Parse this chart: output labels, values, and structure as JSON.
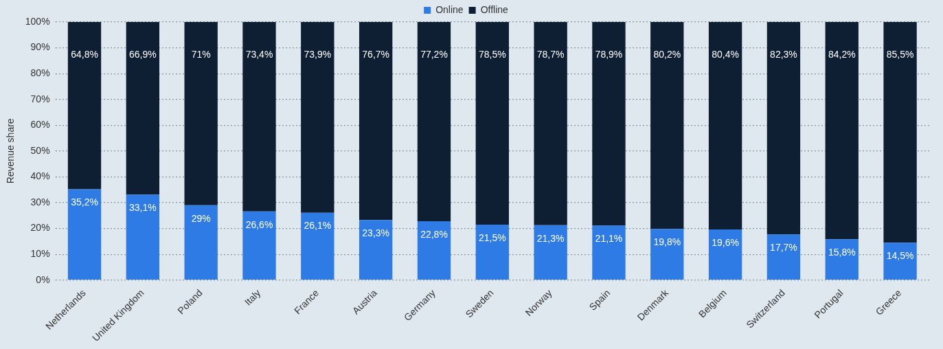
{
  "chart_data": {
    "type": "bar",
    "stacked": true,
    "ylabel": "Revenue share",
    "legend": "top",
    "grid": "y",
    "categories": [
      "Netherlands",
      "United Kingdom",
      "Poland",
      "Italy",
      "France",
      "Austria",
      "Germany",
      "Sweden",
      "Norway",
      "Spain",
      "Denmark",
      "Belgium",
      "Switzerland",
      "Portugal",
      "Greece"
    ],
    "series": [
      {
        "name": "Online",
        "color": "#2f7be6",
        "values": [
          35.2,
          33.1,
          29,
          26.6,
          26.1,
          23.3,
          22.8,
          21.5,
          21.3,
          21.1,
          19.8,
          19.6,
          17.7,
          15.8,
          14.5
        ],
        "value_labels": [
          "35,2%",
          "33,1%",
          "29%",
          "26,6%",
          "26,1%",
          "23,3%",
          "22,8%",
          "21,5%",
          "21,3%",
          "21,1%",
          "19,8%",
          "19,6%",
          "17,7%",
          "15,8%",
          "14,5%"
        ]
      },
      {
        "name": "Offline",
        "color": "#0e1e33",
        "values": [
          64.8,
          66.9,
          71,
          73.4,
          73.9,
          76.7,
          77.2,
          78.5,
          78.7,
          78.9,
          80.2,
          80.4,
          82.3,
          84.2,
          85.5
        ],
        "value_labels": [
          "64,8%",
          "66,9%",
          "71%",
          "73,4%",
          "73,9%",
          "76,7%",
          "77,2%",
          "78,5%",
          "78,7%",
          "78,9%",
          "80,2%",
          "80,4%",
          "82,3%",
          "84,2%",
          "85,5%"
        ]
      }
    ],
    "ylim": [
      0,
      100
    ],
    "yticks": [
      {
        "value": 0,
        "label": "0%"
      },
      {
        "value": 10,
        "label": "10%"
      },
      {
        "value": 20,
        "label": "20%"
      },
      {
        "value": 30,
        "label": "30%"
      },
      {
        "value": 40,
        "label": "40%"
      },
      {
        "value": 50,
        "label": "50%"
      },
      {
        "value": 60,
        "label": "60%"
      },
      {
        "value": 70,
        "label": "70%"
      },
      {
        "value": 80,
        "label": "80%"
      },
      {
        "value": 90,
        "label": "90%"
      },
      {
        "value": 100,
        "label": "100%"
      }
    ]
  }
}
